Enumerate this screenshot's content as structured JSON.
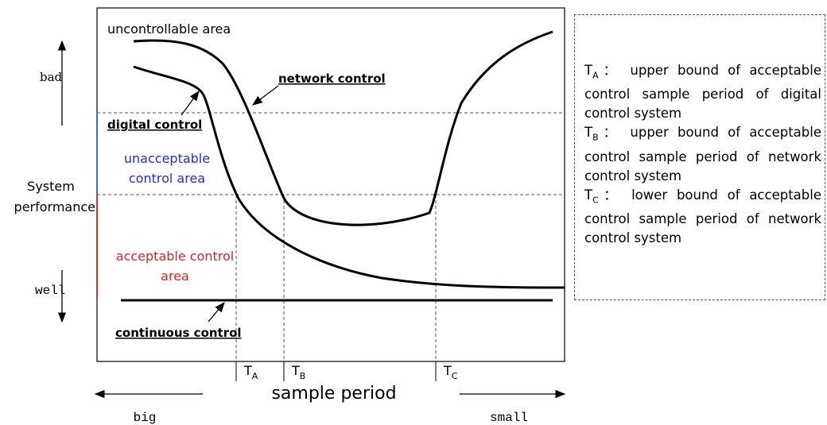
{
  "regions": {
    "uncontrollable": "uncontrollable area",
    "unacceptable": [
      "unacceptable",
      "control area"
    ],
    "acceptable": [
      "acceptable control",
      "area"
    ]
  },
  "curves": {
    "network": "network control",
    "digital": "digital control",
    "continuous": "continuous control"
  },
  "y_axis": {
    "label": [
      "System",
      "performance"
    ],
    "top": "bad",
    "bottom": "well"
  },
  "x_axis": {
    "label": "sample period",
    "left": "big",
    "right": "small",
    "marks": [
      {
        "symbol": "T",
        "sub": "A"
      },
      {
        "symbol": "T",
        "sub": "B"
      },
      {
        "symbol": "T",
        "sub": "C"
      }
    ]
  },
  "legend": [
    {
      "symbol": "T",
      "sub": "A",
      "text": "： upper bound of acceptable control sample period of digital control system"
    },
    {
      "symbol": "T",
      "sub": "B",
      "text": "： upper bound of acceptable control sample period of network control system"
    },
    {
      "symbol": "T",
      "sub": "C",
      "text": "： lower bound of acceptable control sample period of network control system"
    }
  ]
}
